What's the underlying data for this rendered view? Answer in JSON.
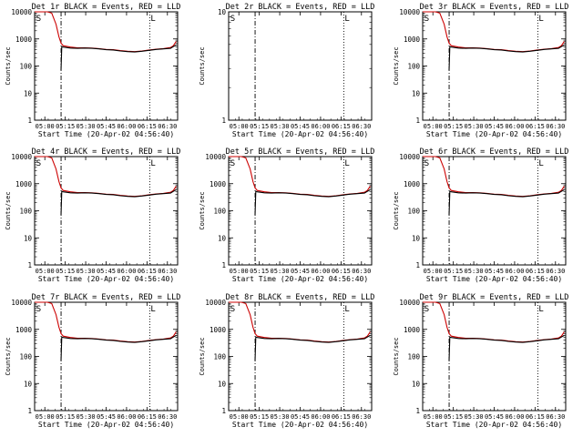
{
  "chart_data": [
    {
      "type": "line",
      "title": "Det 1r BLACK = Events, RED = LLD",
      "xlabel": "Start Time (20-Apr-02 04:56:40)",
      "ylabel": "Counts/sec",
      "yscale": "log",
      "ylim": [
        1,
        10000
      ],
      "xlim": [
        0,
        100
      ],
      "x_ticks": [
        "05:00",
        "05:15",
        "05:30",
        "05:45",
        "06:00",
        "06:15",
        "06:30"
      ],
      "y_ticks": [
        "1",
        "10",
        "100",
        "1000",
        "10000"
      ],
      "markers": [
        "S",
        "L"
      ],
      "has_data": true
    },
    {
      "type": "line",
      "title": "Det 2r BLACK = Events, RED = LLD",
      "xlabel": "Start Time (20-Apr-02 04:56:40)",
      "ylabel": "Counts/sec",
      "yscale": "log",
      "ylim": [
        1,
        10
      ],
      "xlim": [
        0,
        100
      ],
      "x_ticks": [
        "05:00",
        "05:15",
        "05:30",
        "05:45",
        "06:00",
        "06:15",
        "06:30"
      ],
      "y_ticks": [
        "1",
        "10"
      ],
      "markers": [
        "S",
        "L"
      ],
      "has_data": false
    },
    {
      "type": "line",
      "title": "Det 3r BLACK = Events, RED = LLD",
      "xlabel": "Start Time (20-Apr-02 04:56:40)",
      "ylabel": "Counts/sec",
      "yscale": "log",
      "ylim": [
        1,
        10000
      ],
      "xlim": [
        0,
        100
      ],
      "x_ticks": [
        "05:00",
        "05:15",
        "05:30",
        "05:45",
        "06:00",
        "06:15",
        "06:30"
      ],
      "y_ticks": [
        "1",
        "10",
        "100",
        "1000",
        "10000"
      ],
      "markers": [
        "S",
        "L"
      ],
      "has_data": true
    },
    {
      "type": "line",
      "title": "Det 4r BLACK = Events, RED = LLD",
      "xlabel": "Start Time (20-Apr-02 04:56:40)",
      "ylabel": "Counts/sec",
      "yscale": "log",
      "ylim": [
        1,
        10000
      ],
      "xlim": [
        0,
        100
      ],
      "x_ticks": [
        "05:00",
        "05:15",
        "05:30",
        "05:45",
        "06:00",
        "06:15",
        "06:30"
      ],
      "y_ticks": [
        "1",
        "10",
        "100",
        "1000",
        "10000"
      ],
      "markers": [
        "S",
        "L"
      ],
      "has_data": true
    },
    {
      "type": "line",
      "title": "Det 5r BLACK = Events, RED = LLD",
      "xlabel": "Start Time (20-Apr-02 04:56:40)",
      "ylabel": "Counts/sec",
      "yscale": "log",
      "ylim": [
        1,
        10000
      ],
      "xlim": [
        0,
        100
      ],
      "x_ticks": [
        "05:00",
        "05:15",
        "05:30",
        "05:45",
        "06:00",
        "06:15",
        "06:30"
      ],
      "y_ticks": [
        "1",
        "10",
        "100",
        "1000",
        "10000"
      ],
      "markers": [
        "S",
        "L"
      ],
      "has_data": true
    },
    {
      "type": "line",
      "title": "Det 6r BLACK = Events, RED = LLD",
      "xlabel": "Start Time (20-Apr-02 04:56:40)",
      "ylabel": "Counts/sec",
      "yscale": "log",
      "ylim": [
        1,
        10000
      ],
      "xlim": [
        0,
        100
      ],
      "x_ticks": [
        "05:00",
        "05:15",
        "05:30",
        "05:45",
        "06:00",
        "06:15",
        "06:30"
      ],
      "y_ticks": [
        "1",
        "10",
        "100",
        "1000",
        "10000"
      ],
      "markers": [
        "S",
        "L"
      ],
      "has_data": true
    },
    {
      "type": "line",
      "title": "Det 7r BLACK = Events, RED = LLD",
      "xlabel": "Start Time (20-Apr-02 04:56:40)",
      "ylabel": "Counts/sec",
      "yscale": "log",
      "ylim": [
        1,
        10000
      ],
      "xlim": [
        0,
        100
      ],
      "x_ticks": [
        "05:00",
        "05:15",
        "05:30",
        "05:45",
        "06:00",
        "06:15",
        "06:30"
      ],
      "y_ticks": [
        "1",
        "10",
        "100",
        "1000",
        "10000"
      ],
      "markers": [
        "S",
        "L"
      ],
      "has_data": true
    },
    {
      "type": "line",
      "title": "Det 8r BLACK = Events, RED = LLD",
      "xlabel": "Start Time (20-Apr-02 04:56:40)",
      "ylabel": "Counts/sec",
      "yscale": "log",
      "ylim": [
        1,
        10000
      ],
      "xlim": [
        0,
        100
      ],
      "x_ticks": [
        "05:00",
        "05:15",
        "05:30",
        "05:45",
        "06:00",
        "06:15",
        "06:30"
      ],
      "y_ticks": [
        "1",
        "10",
        "100",
        "1000",
        "10000"
      ],
      "markers": [
        "S",
        "L"
      ],
      "has_data": true
    },
    {
      "type": "line",
      "title": "Det 9r BLACK = Events, RED = LLD",
      "xlabel": "Start Time (20-Apr-02 04:56:40)",
      "ylabel": "Counts/sec",
      "yscale": "log",
      "ylim": [
        1,
        10000
      ],
      "xlim": [
        0,
        100
      ],
      "x_ticks": [
        "05:00",
        "05:15",
        "05:30",
        "05:45",
        "06:00",
        "06:15",
        "06:30"
      ],
      "y_ticks": [
        "1",
        "10",
        "100",
        "1000",
        "10000"
      ],
      "markers": [
        "S",
        "L"
      ],
      "has_data": true
    }
  ],
  "shared": {
    "x_range": [
      0,
      100
    ],
    "markers_x": {
      "S": 0.5,
      "L": 80.5
    },
    "vlines": [
      {
        "x": 18.5,
        "style": "dashdot"
      },
      {
        "x": 80.5,
        "style": "dotted"
      }
    ],
    "events_series": {
      "name": "Events",
      "color": "#000000",
      "x": [
        18.5,
        19,
        20,
        25,
        30,
        35,
        40,
        45,
        50,
        55,
        60,
        65,
        70,
        75,
        80,
        85,
        90,
        95,
        97,
        99
      ],
      "y": [
        70,
        520,
        500,
        460,
        450,
        460,
        450,
        430,
        400,
        390,
        360,
        340,
        330,
        350,
        380,
        410,
        430,
        450,
        520,
        600
      ]
    },
    "lld_series": {
      "name": "LLD",
      "color": "#cc0000",
      "x": [
        0,
        3,
        6,
        9,
        12,
        15,
        17,
        18.5,
        20,
        25,
        30,
        35,
        40,
        45,
        50,
        55,
        60,
        65,
        70,
        75,
        80,
        85,
        90,
        95,
        97,
        99
      ],
      "y": [
        10000,
        10000,
        10000,
        10000,
        9000,
        3500,
        1200,
        700,
        560,
        500,
        470,
        470,
        460,
        440,
        410,
        400,
        370,
        350,
        340,
        360,
        390,
        420,
        440,
        480,
        560,
        800
      ]
    }
  }
}
